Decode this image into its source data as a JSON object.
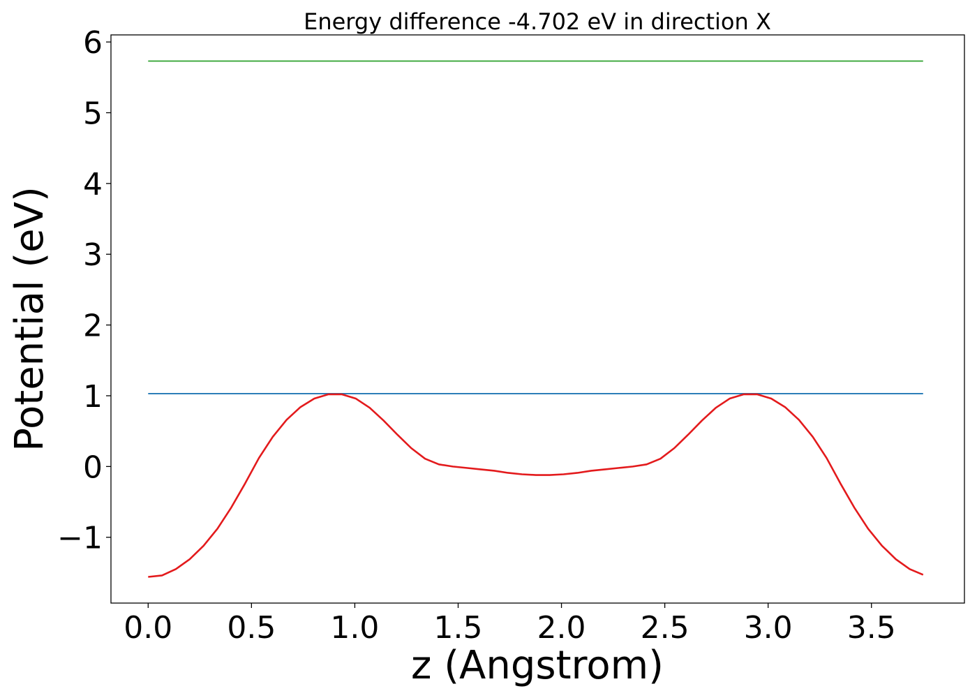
{
  "chart_data": {
    "type": "line",
    "title": "Energy difference -4.702 eV in direction X",
    "xlabel": "z (Angstrom)",
    "ylabel": "Potential (eV)",
    "xlim": [
      -0.18,
      3.95
    ],
    "ylim": [
      -1.93,
      6.1
    ],
    "xticks": [
      0.0,
      0.5,
      1.0,
      1.5,
      2.0,
      2.5,
      3.0,
      3.5
    ],
    "xtick_labels": [
      "0.0",
      "0.5",
      "1.0",
      "1.5",
      "2.0",
      "2.5",
      "3.0",
      "3.5"
    ],
    "yticks": [
      -1,
      0,
      1,
      2,
      3,
      4,
      5,
      6
    ],
    "ytick_labels": [
      "−1",
      "0",
      "1",
      "2",
      "3",
      "4",
      "5",
      "6"
    ],
    "grid": false,
    "legend": "none",
    "series": [
      {
        "color": "#2ca02c",
        "x": [
          0.0,
          3.75
        ],
        "values": [
          5.73,
          5.73
        ]
      },
      {
        "color": "#1f77b4",
        "x": [
          0.0,
          3.75
        ],
        "values": [
          1.03,
          1.03
        ]
      },
      {
        "color": "#e31a1c",
        "x": [
          0.0,
          0.067,
          0.134,
          0.201,
          0.268,
          0.335,
          0.402,
          0.469,
          0.536,
          0.603,
          0.67,
          0.737,
          0.804,
          0.871,
          0.938,
          1.005,
          1.072,
          1.139,
          1.206,
          1.273,
          1.34,
          1.407,
          1.474,
          1.541,
          1.608,
          1.675,
          1.742,
          1.809,
          1.876,
          1.943,
          2.01,
          2.077,
          2.144,
          2.211,
          2.278,
          2.345,
          2.412,
          2.479,
          2.546,
          2.613,
          2.68,
          2.747,
          2.814,
          2.881,
          2.948,
          3.015,
          3.082,
          3.149,
          3.216,
          3.283,
          3.35,
          3.417,
          3.484,
          3.551,
          3.618,
          3.685,
          3.75
        ],
        "values": [
          -1.56,
          -1.54,
          -1.45,
          -1.31,
          -1.12,
          -0.88,
          -0.58,
          -0.24,
          0.12,
          0.42,
          0.66,
          0.84,
          0.96,
          1.02,
          1.02,
          0.96,
          0.83,
          0.65,
          0.45,
          0.26,
          0.11,
          0.03,
          0.0,
          -0.02,
          -0.04,
          -0.06,
          -0.09,
          -0.11,
          -0.12,
          -0.12,
          -0.11,
          -0.09,
          -0.06,
          -0.04,
          -0.02,
          0.0,
          0.03,
          0.11,
          0.26,
          0.45,
          0.65,
          0.83,
          0.96,
          1.02,
          1.02,
          0.96,
          0.84,
          0.66,
          0.42,
          0.12,
          -0.24,
          -0.58,
          -0.88,
          -1.12,
          -1.31,
          -1.45,
          -1.53
        ]
      }
    ]
  }
}
